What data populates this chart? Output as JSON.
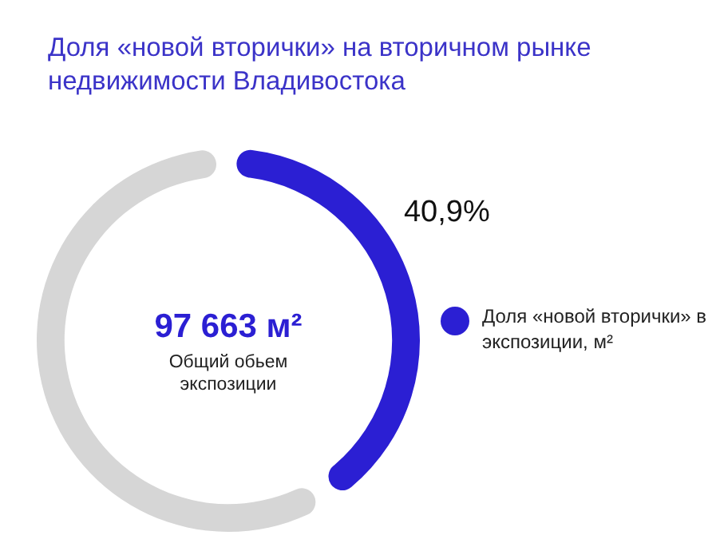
{
  "chart_data": {
    "type": "donut",
    "title": "Доля «новой вторички» на вторичном рынке недвижимости Владивостока",
    "categories": [
      "Доля «новой вторички» в экспозиции, м²",
      null
    ],
    "values": [
      40.9,
      59.1
    ],
    "colors": [
      "#2b1fd3",
      "#d6d6d6"
    ],
    "value_labels": [
      "40,9%",
      null
    ],
    "legend": "right",
    "annotations": [
      "97 663 м²",
      "Общий обьем экспозиции"
    ]
  }
}
